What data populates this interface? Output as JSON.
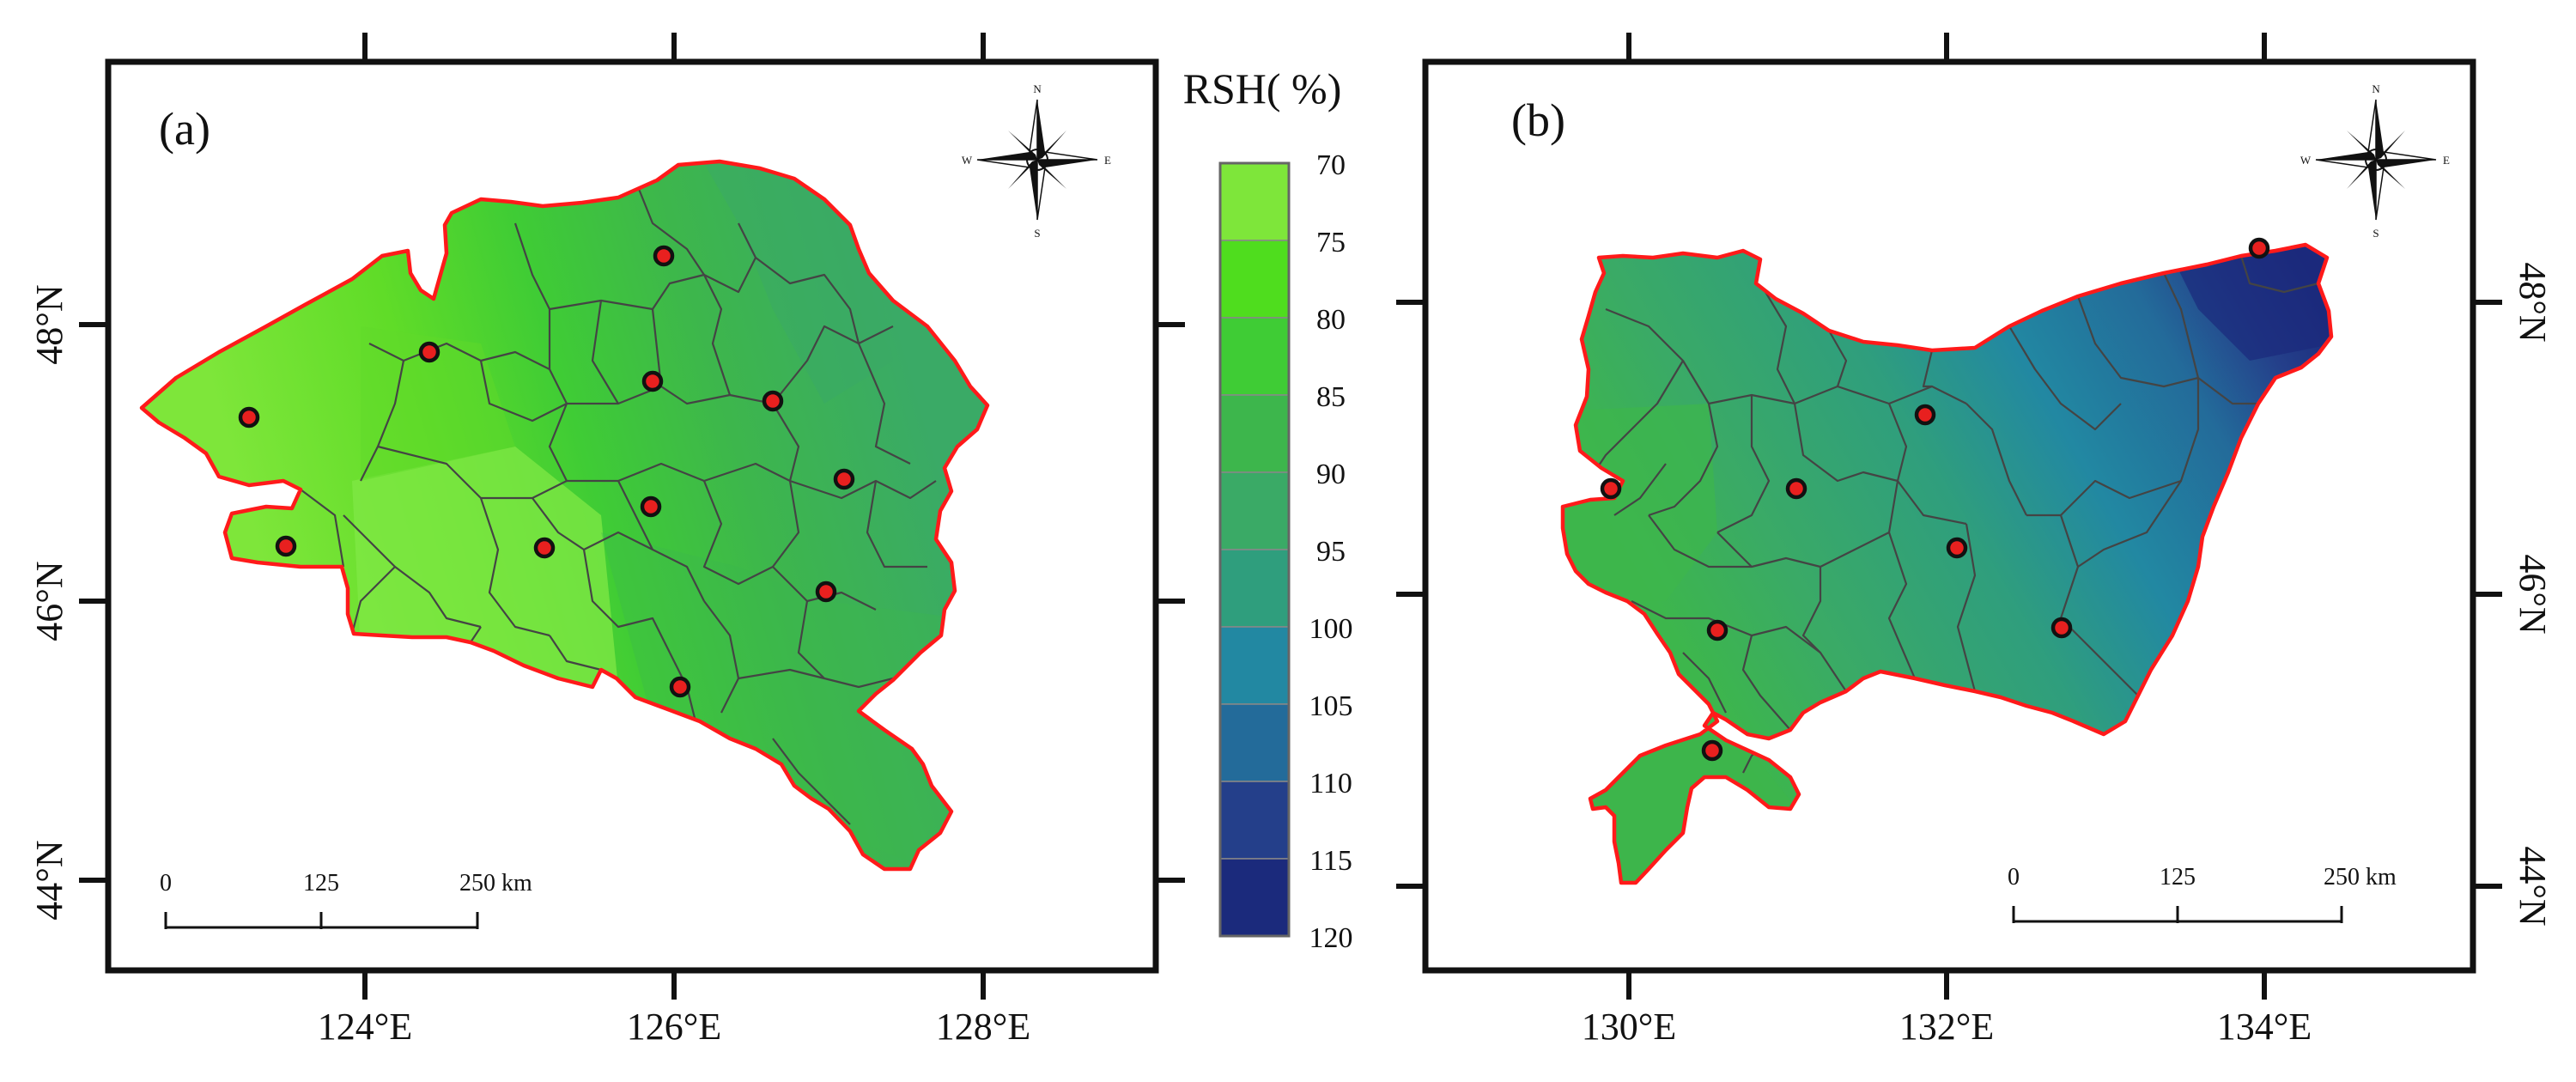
{
  "panels": [
    {
      "label": "(a)",
      "lon_labels": [
        "124°E",
        "126°E",
        "128°E"
      ],
      "lat_labels": [
        "48°N",
        "46°N",
        "44°N"
      ],
      "scale_ticks": [
        "0",
        "125",
        "250"
      ],
      "scale_unit": "km",
      "station_count": 11,
      "compass": {
        "n": "N",
        "s": "S",
        "e": "E",
        "w": "W"
      }
    },
    {
      "label": "(b)",
      "lon_labels": [
        "130°E",
        "132°E",
        "134°E"
      ],
      "lat_labels": [
        "48°N",
        "46°N",
        "44°N"
      ],
      "scale_ticks": [
        "0",
        "125",
        "250"
      ],
      "scale_unit": "km",
      "station_count": 8,
      "compass": {
        "n": "N",
        "s": "S",
        "e": "E",
        "w": "W"
      }
    }
  ],
  "legend": {
    "title": "RSH( %)",
    "values": [
      "70",
      "75",
      "80",
      "85",
      "90",
      "95",
      "100",
      "105",
      "110",
      "115",
      "120"
    ],
    "colors": [
      "#7ee63a",
      "#4fdd1e",
      "#3fcc35",
      "#3db64c",
      "#3aaa66",
      "#2f9e7d",
      "#2288a2",
      "#236b9a",
      "#243f8a",
      "#1b2a7c"
    ]
  }
}
